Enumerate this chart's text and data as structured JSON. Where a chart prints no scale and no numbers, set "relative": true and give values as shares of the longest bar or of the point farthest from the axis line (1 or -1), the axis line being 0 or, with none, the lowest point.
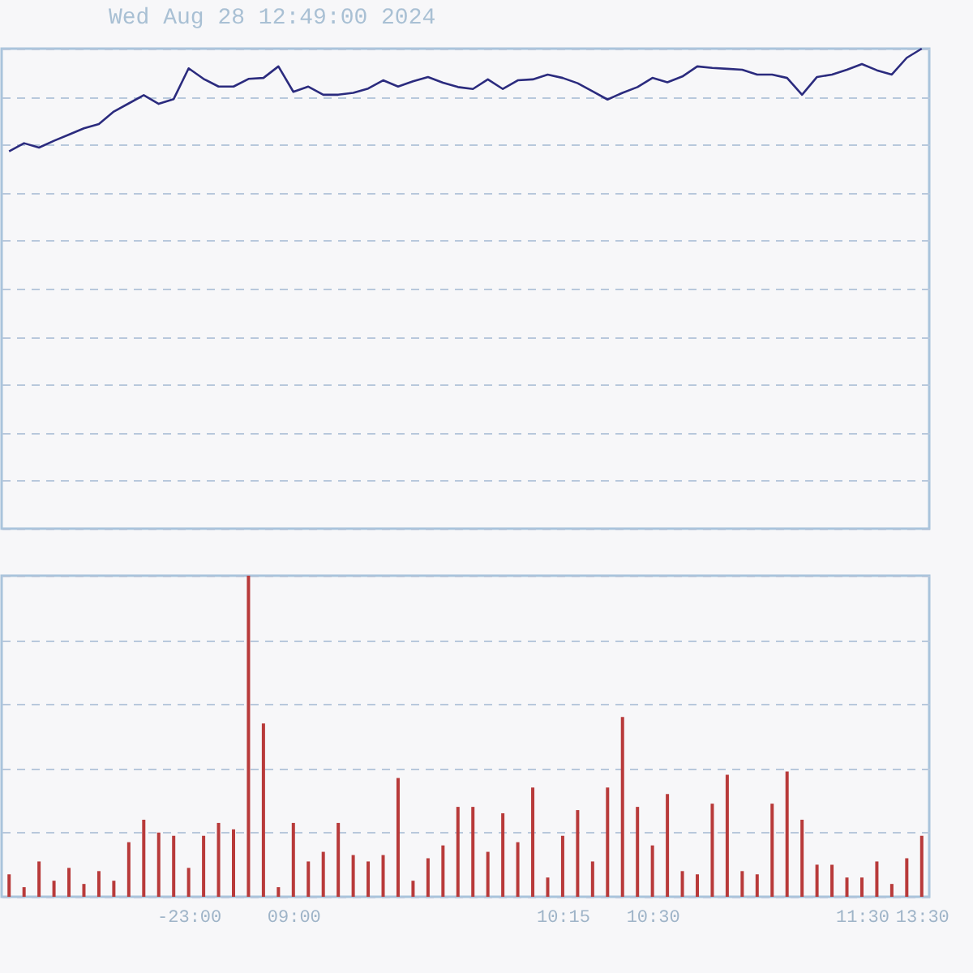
{
  "chart_data": [
    {
      "type": "line",
      "title": "Wed Aug 28 12:49:00 2024",
      "relative": true,
      "tick_labels": false,
      "grid": true,
      "legend": false,
      "categories": [
        null,
        null,
        null,
        null,
        null,
        null,
        null,
        null,
        null,
        null,
        null,
        null,
        null,
        null,
        null,
        null,
        null,
        null,
        null,
        null,
        null,
        null,
        null,
        null,
        null,
        null,
        null,
        null,
        null,
        null,
        null,
        null,
        null,
        null,
        null,
        null,
        null,
        null,
        null,
        null,
        null,
        null,
        null,
        null,
        null,
        null,
        null,
        null,
        null,
        null,
        null,
        null,
        null,
        null,
        null,
        null,
        null,
        null,
        null,
        null,
        null,
        null
      ],
      "series": [
        {
          "color": "#2b2b7e",
          "values": [
            0.786,
            0.803,
            0.794,
            0.808,
            0.821,
            0.834,
            0.843,
            0.869,
            0.886,
            0.903,
            0.885,
            0.895,
            0.959,
            0.937,
            0.921,
            0.921,
            0.937,
            0.939,
            0.963,
            0.91,
            0.921,
            0.904,
            0.904,
            0.908,
            0.917,
            0.934,
            0.921,
            0.932,
            0.941,
            0.929,
            0.92,
            0.916,
            0.936,
            0.916,
            0.934,
            0.936,
            0.946,
            0.939,
            0.928,
            0.911,
            0.894,
            0.908,
            0.92,
            0.939,
            0.93,
            0.942,
            0.963,
            0.96,
            0.958,
            0.956,
            0.946,
            0.946,
            0.939,
            0.904,
            0.941,
            0.946,
            0.956,
            0.968,
            0.955,
            0.946,
            0.981,
            1
          ]
        }
      ]
    },
    {
      "type": "bar",
      "relative": true,
      "tick_labels": "x",
      "grid": true,
      "legend": false,
      "categories": [
        null,
        null,
        null,
        null,
        null,
        null,
        null,
        null,
        null,
        null,
        null,
        null,
        "-23:00",
        null,
        null,
        null,
        null,
        null,
        null,
        "09:00",
        null,
        null,
        null,
        null,
        null,
        null,
        null,
        null,
        null,
        null,
        null,
        null,
        null,
        null,
        null,
        null,
        null,
        "10:15",
        null,
        null,
        null,
        null,
        null,
        "10:30",
        null,
        null,
        null,
        null,
        null,
        null,
        null,
        null,
        null,
        null,
        null,
        null,
        null,
        "11:30",
        null,
        null,
        null,
        "13:30"
      ],
      "series": [
        {
          "color": "#b83a3a",
          "values": [
            0.07,
            0.03,
            0.11,
            0.05,
            0.09,
            0.04,
            0.08,
            0.05,
            0.17,
            0.24,
            0.2,
            0.19,
            0.09,
            0.19,
            0.23,
            0.21,
            1,
            0.54,
            0.03,
            0.23,
            0.11,
            0.14,
            0.23,
            0.13,
            0.11,
            0.13,
            0.37,
            0.05,
            0.12,
            0.16,
            0.28,
            0.28,
            0.14,
            0.26,
            0.17,
            0.34,
            0.06,
            0.19,
            0.27,
            0.11,
            0.34,
            0.56,
            0.28,
            0.16,
            0.32,
            0.08,
            0.07,
            0.29,
            0.38,
            0.08,
            0.07,
            0.29,
            0.39,
            0.24,
            0.1,
            0.1,
            0.06,
            0.06,
            0.11,
            0.04,
            0.12,
            0.19
          ]
        }
      ]
    }
  ]
}
